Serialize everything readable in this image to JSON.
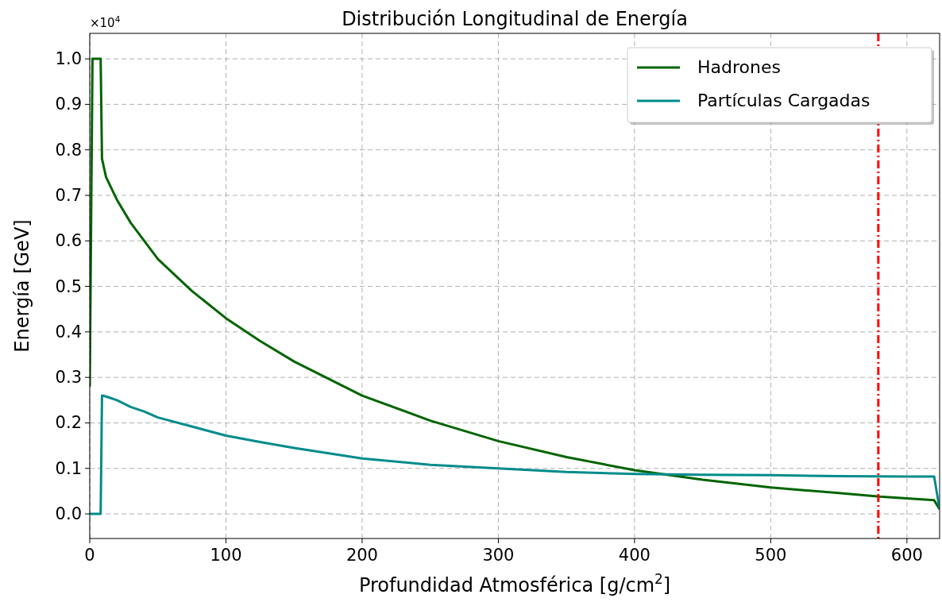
{
  "chart_data": {
    "type": "line",
    "title": "Distribución Longitudinal de Energía",
    "xlabel": "Profundidad Atmosférica [g/cm$^{2}$]",
    "ylabel": "Energía [GeV]",
    "annotations": [
      "×10$^{4}$"
    ],
    "xlim": [
      0,
      624
    ],
    "xticks": [
      0,
      100,
      200,
      300,
      400,
      500,
      600
    ],
    "ylim": [
      -0.054,
      1.056
    ],
    "yticks": [
      {
        "value": 0,
        "label": "0.0"
      },
      0.1,
      0.2,
      0.3,
      0.4,
      0.5,
      0.6,
      0.7,
      0.8,
      0.9,
      {
        "value": 1,
        "label": "1.0"
      }
    ],
    "grid": true,
    "legend": "top right",
    "line_style": "solid",
    "marker": "none",
    "ref_lines": [
      {
        "axis": "x",
        "value": 579,
        "color": "#ff0000",
        "line_style": "dashdot"
      }
    ],
    "series": [
      {
        "name": "Hadrones",
        "color": "#006400",
        "x": [
          0,
          2,
          8,
          9,
          12,
          20,
          30,
          50,
          75,
          100,
          125,
          150,
          200,
          250,
          300,
          350,
          400,
          450,
          500,
          550,
          580,
          620,
          624
        ],
        "values": [
          0.28,
          1,
          1,
          0.78,
          0.74,
          0.69,
          0.64,
          0.56,
          0.49,
          0.43,
          0.38,
          0.335,
          0.26,
          0.205,
          0.16,
          0.125,
          0.096,
          0.075,
          0.058,
          0.046,
          0.038,
          0.03,
          0.01
        ]
      },
      {
        "name": "Partículas Cargadas",
        "color": "#008b8b",
        "x": [
          0,
          8,
          9,
          12,
          20,
          30,
          40,
          50,
          75,
          100,
          125,
          150,
          200,
          250,
          300,
          350,
          400,
          450,
          500,
          550,
          600,
          620,
          624
        ],
        "values": [
          0,
          0,
          0.26,
          0.258,
          0.25,
          0.235,
          0.225,
          0.212,
          0.192,
          0.172,
          0.158,
          0.145,
          0.122,
          0.108,
          0.1,
          0.092,
          0.088,
          0.086,
          0.085,
          0.083,
          0.082,
          0.082,
          0.01
        ]
      }
    ]
  }
}
